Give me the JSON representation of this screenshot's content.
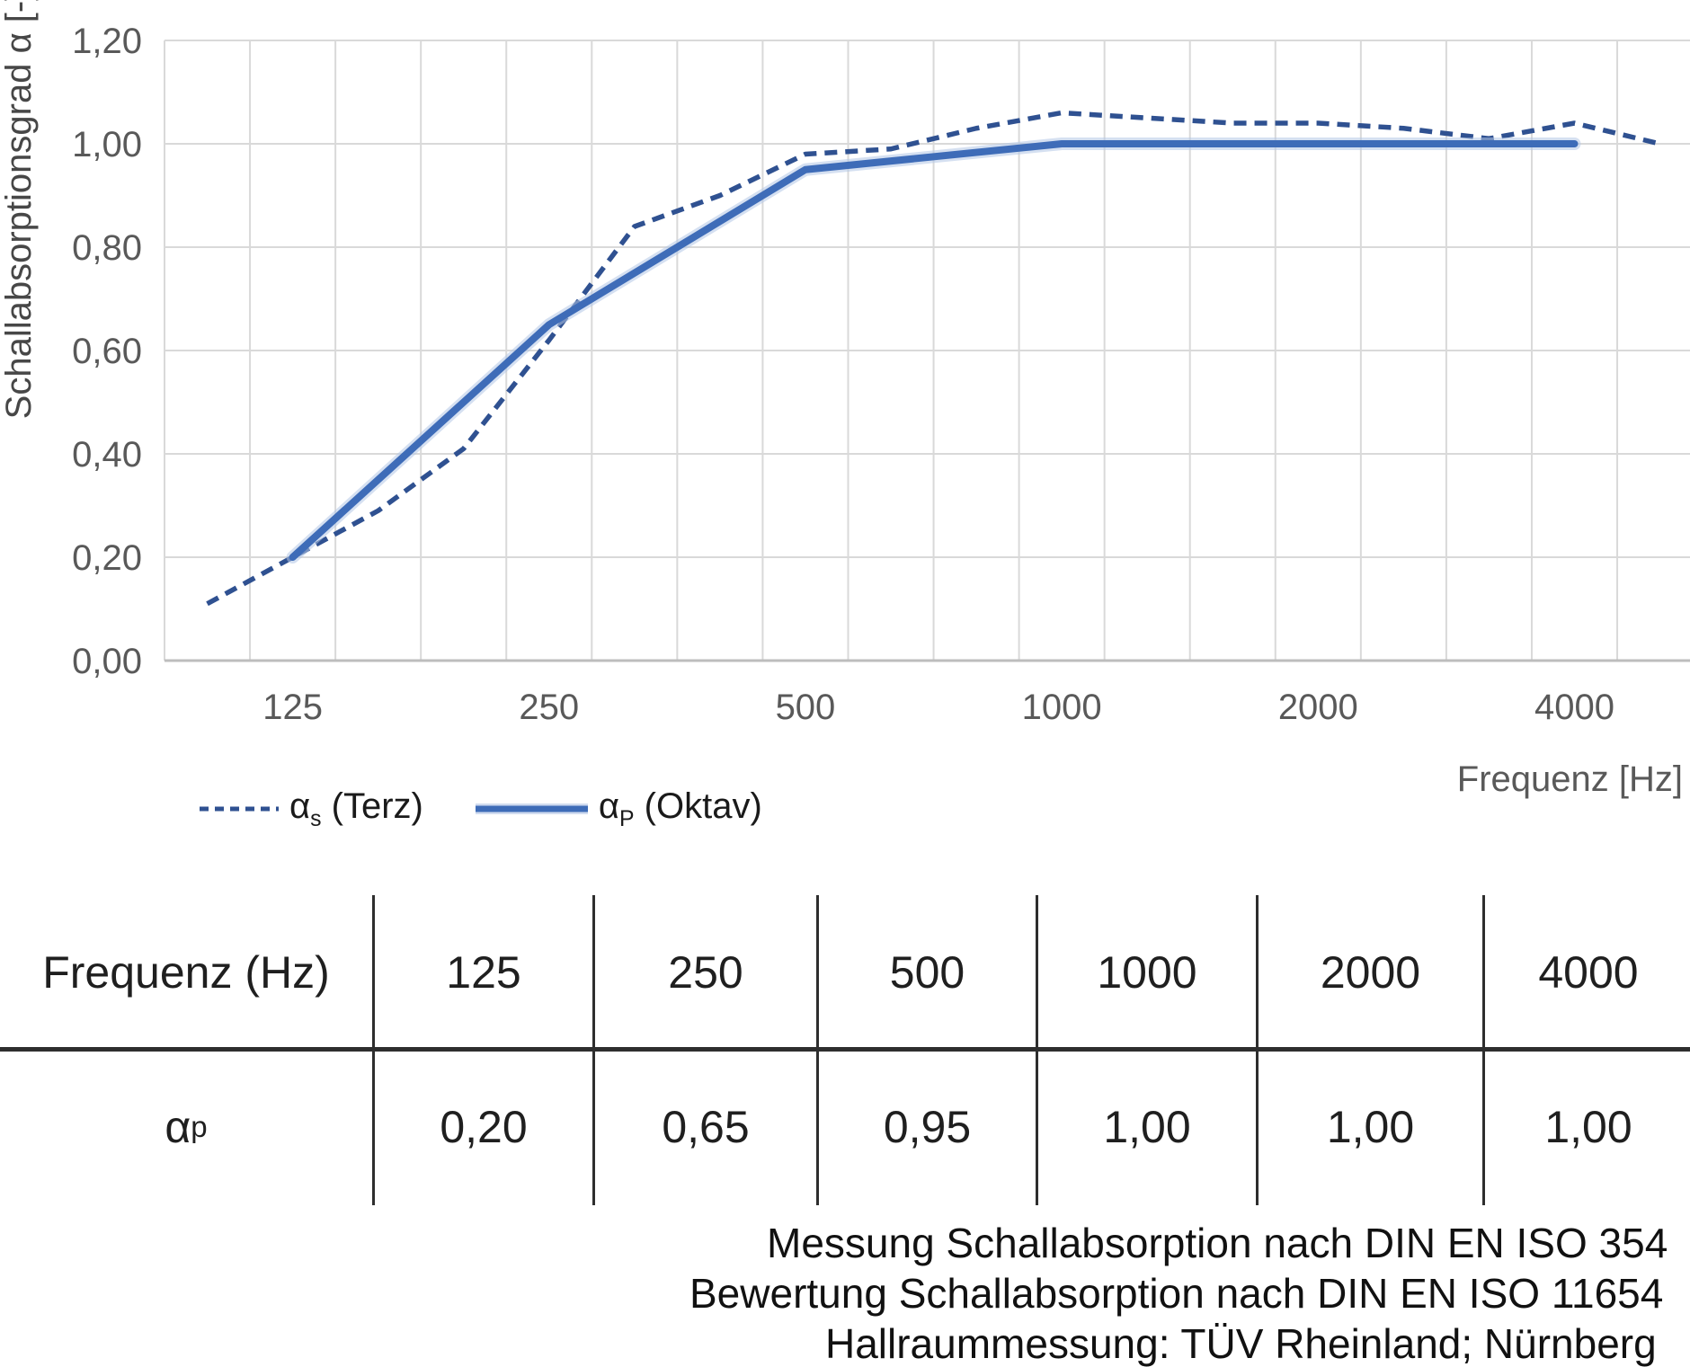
{
  "chart": {
    "y_axis_title": "Schallabsorptionsgrad α [-]",
    "x_axis_title": "Frequenz [Hz]",
    "y_ticks": [
      "0,00",
      "0,20",
      "0,40",
      "0,60",
      "0,80",
      "1,00",
      "1,20"
    ]
  },
  "chart_data": {
    "type": "line",
    "title": "",
    "xlabel": "Frequenz [Hz]",
    "ylabel": "Schallabsorptionsgrad α [-]",
    "ylim": [
      0,
      1.2
    ],
    "grid": true,
    "legend_position": "bottom-left",
    "categories": [
      100,
      125,
      160,
      200,
      250,
      315,
      400,
      500,
      630,
      800,
      1000,
      1250,
      1600,
      2000,
      2500,
      3150,
      4000,
      5000
    ],
    "x_tick_labels": [
      "125",
      "250",
      "500",
      "1000",
      "2000",
      "4000"
    ],
    "x_tick_indices": [
      1,
      4,
      7,
      10,
      13,
      16
    ],
    "series": [
      {
        "name": "αs (Terz)",
        "style": "dashed",
        "color": "#2F5191",
        "values": [
          0.11,
          0.2,
          0.29,
          0.41,
          0.62,
          0.84,
          0.9,
          0.98,
          0.99,
          1.03,
          1.06,
          1.05,
          1.04,
          1.04,
          1.03,
          1.01,
          1.04,
          1.0
        ]
      },
      {
        "name": "αP (Oktav)",
        "style": "solid",
        "color": "#3E6CB8",
        "halo_color": "#B3C6E6",
        "category_indices": [
          1,
          4,
          7,
          10,
          13,
          16
        ],
        "x": [
          125,
          250,
          500,
          1000,
          2000,
          4000
        ],
        "values": [
          0.2,
          0.65,
          0.95,
          1.0,
          1.0,
          1.0
        ]
      }
    ]
  },
  "legend": {
    "items": [
      {
        "base": "α",
        "sub": "s",
        "rest": "(Terz)"
      },
      {
        "base": "α",
        "sub": "P",
        "rest": "(Oktav)"
      }
    ]
  },
  "table": {
    "header": [
      "Frequenz (Hz)",
      "125",
      "250",
      "500",
      "1000",
      "2000",
      "4000"
    ],
    "row_label": {
      "base": "α",
      "sub": "p"
    },
    "values": [
      "0,20",
      "0,65",
      "0,95",
      "1,00",
      "1,00",
      "1,00"
    ]
  },
  "caption": {
    "lines": [
      "Messung Schallabsorption nach DIN EN ISO 354",
      "Bewertung Schallabsorption nach DIN EN ISO 11654",
      "Hallraummessung: TÜV Rheinland; Nürnberg"
    ]
  }
}
